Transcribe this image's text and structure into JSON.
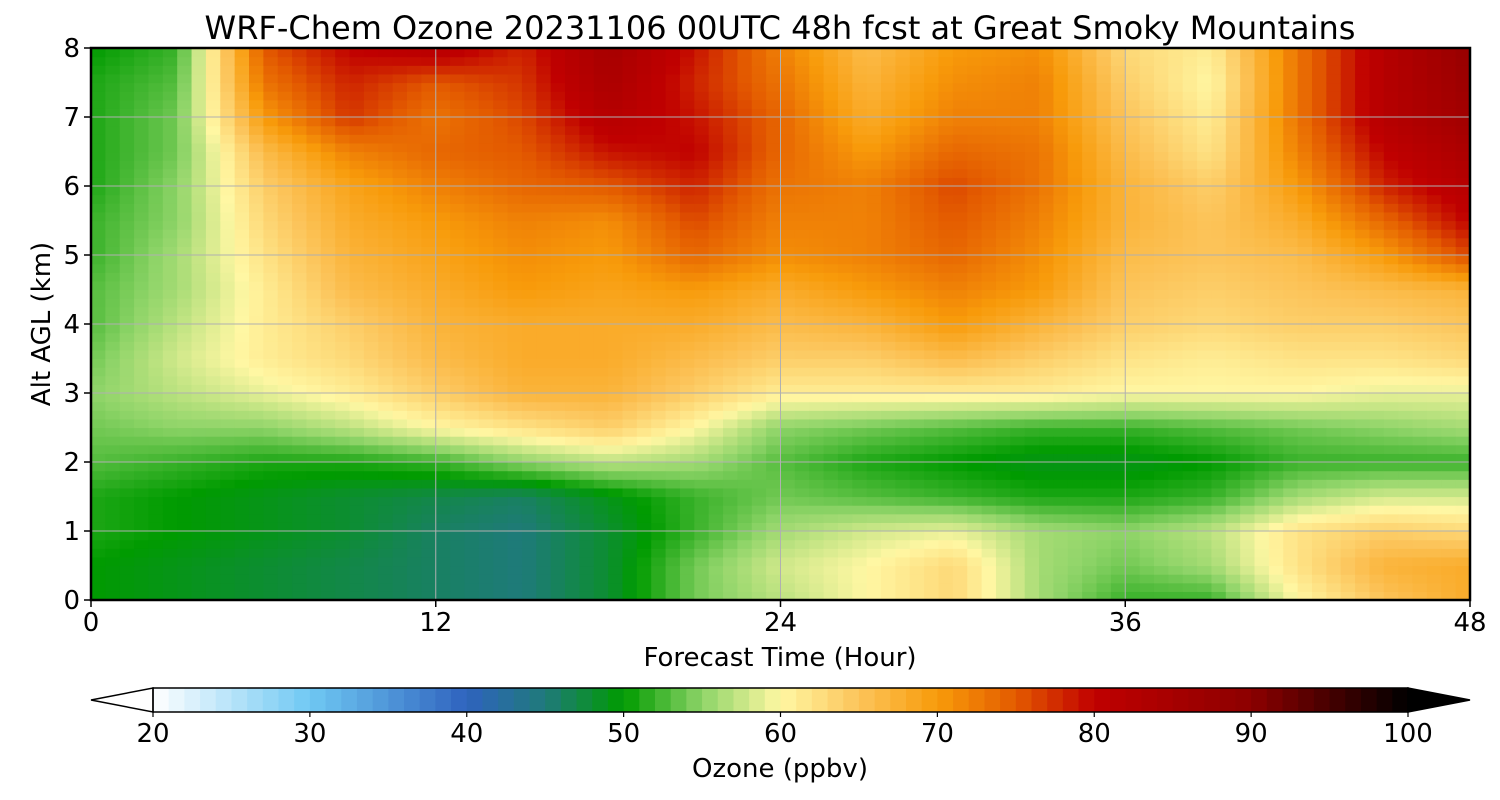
{
  "chart_data": {
    "type": "heatmap",
    "title": "WRF-Chem Ozone  20231106 00UTC 48h fcst at Great Smoky Mountains",
    "xlabel": "Forecast Time (Hour)",
    "ylabel": "Alt AGL (km)",
    "xlim": [
      0,
      48
    ],
    "ylim": [
      0,
      8
    ],
    "xticks": [
      "0",
      "12",
      "24",
      "36",
      "48"
    ],
    "yticks": [
      "0",
      "1",
      "2",
      "3",
      "4",
      "5",
      "6",
      "7",
      "8"
    ],
    "grid": true,
    "x": [
      0,
      3,
      6,
      9,
      12,
      15,
      18,
      21,
      24,
      27,
      30,
      33,
      36,
      39,
      42,
      45,
      48
    ],
    "y": [
      0,
      0.5,
      1,
      1.5,
      2,
      2.5,
      3,
      3.5,
      4,
      4.5,
      5,
      5.5,
      6,
      6.5,
      7,
      7.5,
      8
    ],
    "z": [
      [
        50,
        49,
        48,
        47,
        46,
        45,
        48,
        54,
        57,
        60,
        63,
        56,
        52,
        52,
        60,
        65,
        68
      ],
      [
        50,
        49,
        48,
        47,
        46,
        45,
        48,
        54,
        58,
        60,
        63,
        56,
        54,
        56,
        62,
        67,
        68
      ],
      [
        51,
        50,
        49,
        48,
        46,
        45,
        48,
        52,
        56,
        58,
        59,
        56,
        55,
        57,
        62,
        64,
        63
      ],
      [
        51,
        50,
        49,
        48,
        47,
        46,
        49,
        52,
        54,
        53,
        52,
        51,
        51,
        52,
        56,
        58,
        58
      ],
      [
        53,
        52,
        51,
        51,
        52,
        55,
        57,
        56,
        53,
        51,
        50,
        49,
        49,
        50,
        52,
        52,
        52
      ],
      [
        54,
        55,
        55,
        57,
        60,
        62,
        64,
        60,
        55,
        54,
        53,
        52,
        52,
        53,
        54,
        55,
        56
      ],
      [
        55,
        57,
        59,
        61,
        64,
        67,
        67,
        64,
        61,
        61,
        61,
        61,
        60,
        60,
        60,
        59,
        59
      ],
      [
        54,
        58,
        61,
        63,
        66,
        68,
        68,
        66,
        64,
        64,
        66,
        64,
        62,
        61,
        62,
        62,
        63
      ],
      [
        53,
        57,
        61,
        64,
        67,
        68,
        68,
        68,
        66,
        67,
        70,
        67,
        64,
        63,
        64,
        64,
        65
      ],
      [
        53,
        56,
        61,
        66,
        68,
        70,
        69,
        70,
        68,
        70,
        72,
        70,
        65,
        64,
        65,
        66,
        67
      ],
      [
        52,
        56,
        62,
        67,
        69,
        71,
        70,
        74,
        71,
        72,
        74,
        71,
        66,
        65,
        66,
        70,
        76
      ],
      [
        52,
        55,
        63,
        68,
        70,
        72,
        71,
        76,
        72,
        72,
        75,
        72,
        67,
        65,
        68,
        74,
        80
      ],
      [
        51,
        55,
        64,
        69,
        72,
        74,
        75,
        78,
        73,
        72,
        76,
        73,
        67,
        64,
        70,
        78,
        82
      ],
      [
        51,
        54,
        66,
        72,
        74,
        75,
        79,
        80,
        74,
        70,
        74,
        73,
        66,
        62,
        72,
        80,
        84
      ],
      [
        51,
        54,
        70,
        77,
        73,
        76,
        82,
        79,
        74,
        68,
        72,
        72,
        65,
        61,
        73,
        82,
        86
      ],
      [
        51,
        53,
        73,
        78,
        75,
        77,
        84,
        78,
        73,
        67,
        71,
        72,
        64,
        60,
        73,
        82,
        87
      ],
      [
        50,
        52,
        75,
        80,
        82,
        78,
        85,
        79,
        72,
        66,
        70,
        71,
        63,
        61,
        73,
        82,
        88
      ]
    ],
    "colorbar": {
      "label": "Ozone  (ppbv)",
      "min": 20,
      "max": 100,
      "extend": "both",
      "ticks": [
        "20",
        "30",
        "40",
        "50",
        "60",
        "70",
        "80",
        "90",
        "100"
      ],
      "color_stops": [
        {
          "v": 20,
          "c": "#ffffff"
        },
        {
          "v": 30,
          "c": "#6fc8f3"
        },
        {
          "v": 40,
          "c": "#2f63be"
        },
        {
          "v": 45,
          "c": "#1f7a7a"
        },
        {
          "v": 50,
          "c": "#009b00"
        },
        {
          "v": 55,
          "c": "#8ed468"
        },
        {
          "v": 60,
          "c": "#fff7a3"
        },
        {
          "v": 65,
          "c": "#fcc45a"
        },
        {
          "v": 70,
          "c": "#f89b0a"
        },
        {
          "v": 75,
          "c": "#e35a00"
        },
        {
          "v": 80,
          "c": "#c00000"
        },
        {
          "v": 90,
          "c": "#8c0000"
        },
        {
          "v": 100,
          "c": "#000000"
        }
      ]
    }
  }
}
